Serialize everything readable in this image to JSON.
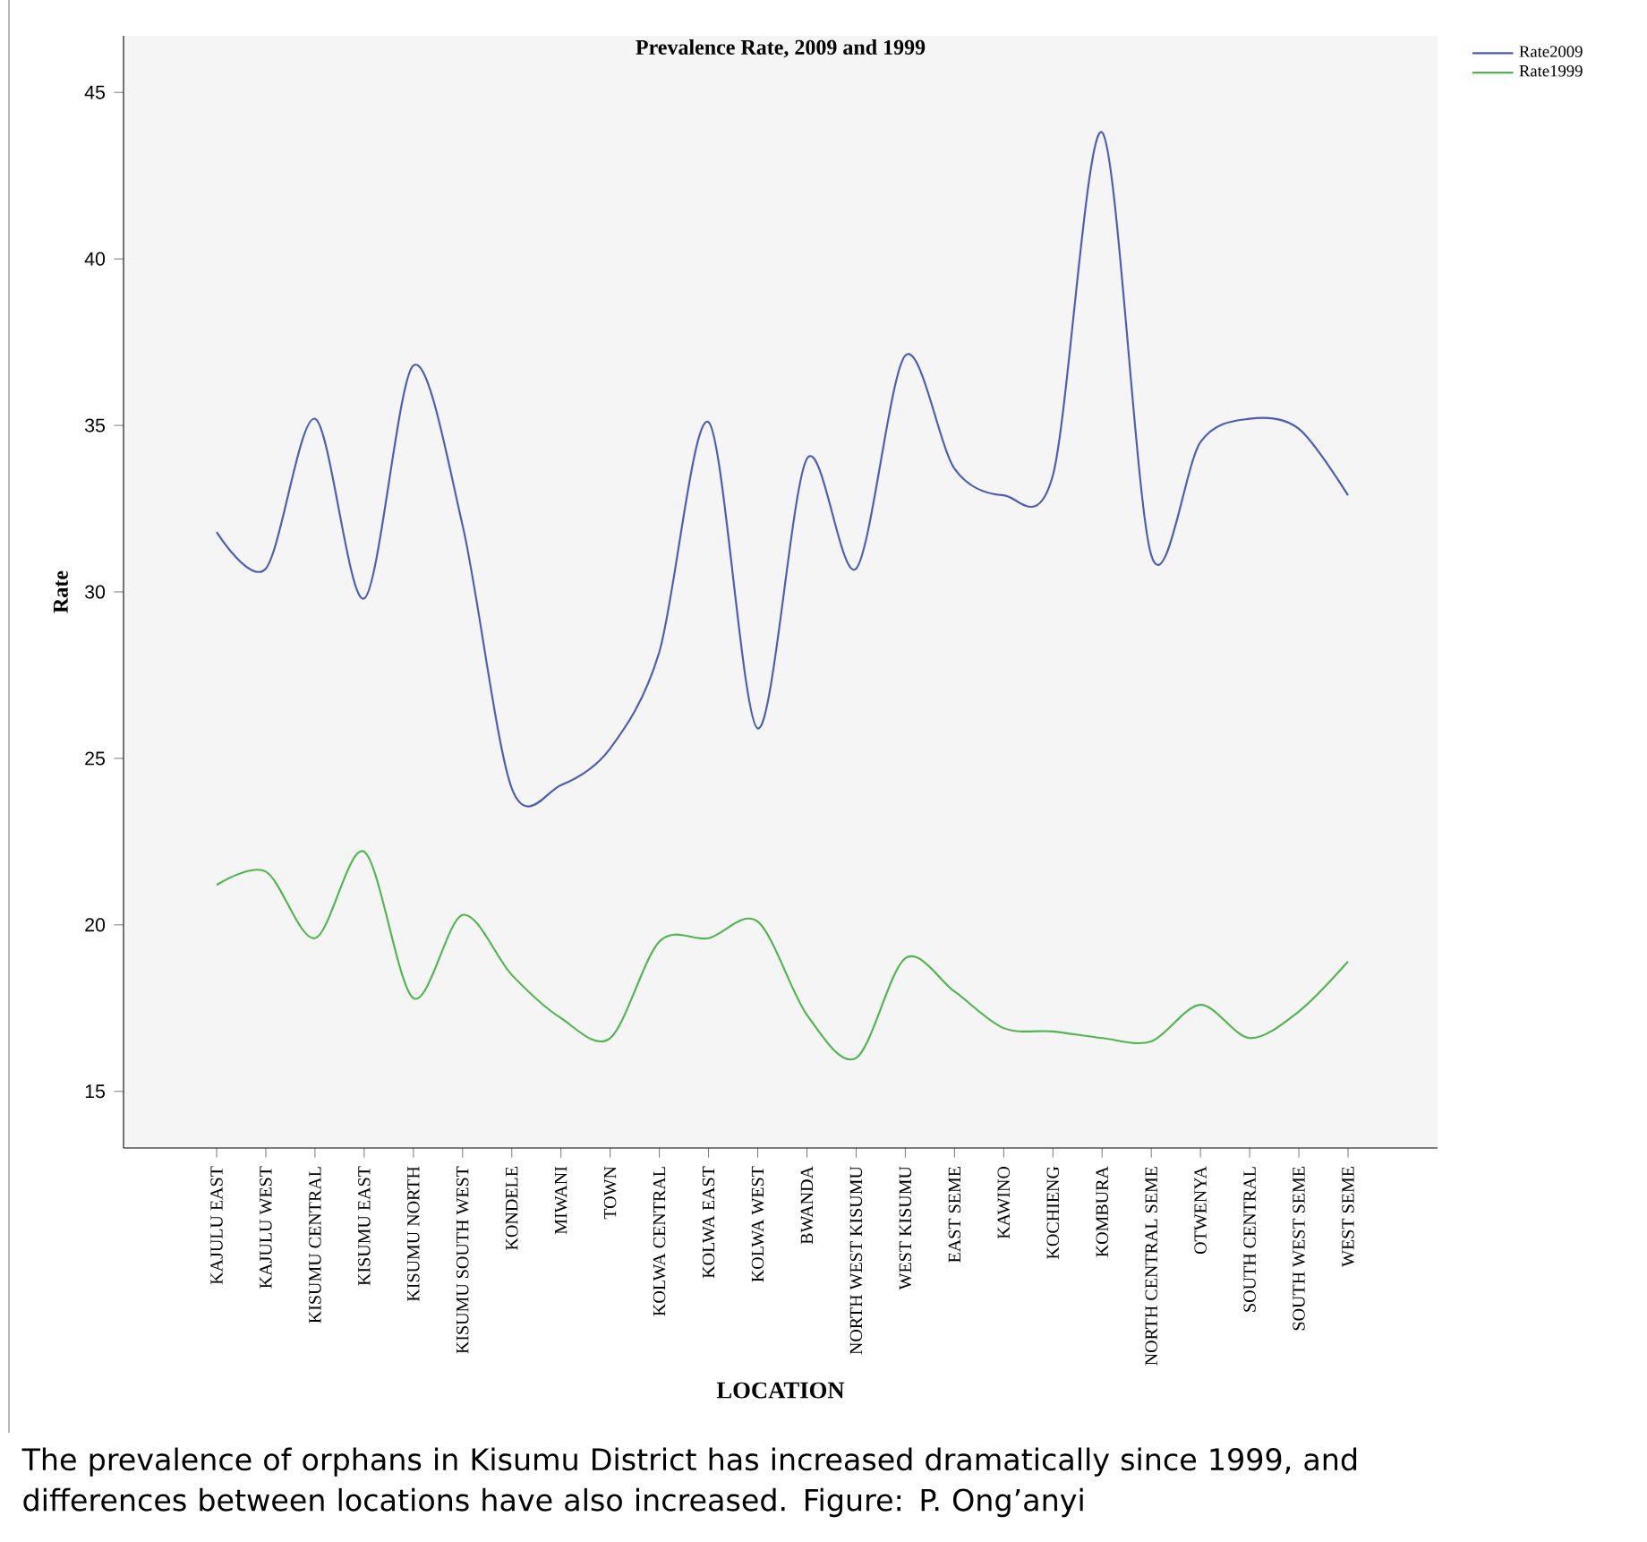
{
  "chart_data": {
    "type": "line",
    "title": "Prevalence Rate, 2009 and 1999",
    "xlabel": "LOCATION",
    "ylabel": "Rate",
    "categories": [
      "KAJULU EAST",
      "KAJULU WEST",
      "KISUMU CENTRAL",
      "KISUMU EAST",
      "KISUMU NORTH",
      "KISUMU SOUTH WEST",
      "KONDELE",
      "MIWANI",
      "TOWN",
      "KOLWA CENTRAL",
      "KOLWA EAST",
      "KOLWA WEST",
      "BWANDA",
      "NORTH WEST KISUMU",
      "WEST KISUMU",
      "EAST SEME",
      "KAWINO",
      "KOCHIENG",
      "KOMBURA",
      "NORTH CENTRAL SEME",
      "OTWENYA",
      "SOUTH CENTRAL",
      "SOUTH WEST SEME",
      "WEST SEME"
    ],
    "series": [
      {
        "name": "Rate2009",
        "color": "#4a5cb5",
        "values": [
          31.8,
          30.7,
          35.2,
          29.8,
          36.8,
          32.0,
          24.1,
          24.2,
          25.3,
          28.2,
          35.1,
          25.9,
          34.0,
          30.7,
          37.1,
          33.7,
          32.9,
          33.5,
          43.8,
          31.1,
          34.5,
          35.2,
          34.9,
          32.9
        ]
      },
      {
        "name": "Rate1999",
        "color": "#4cb84c",
        "values": [
          21.2,
          21.6,
          19.6,
          22.2,
          17.8,
          20.3,
          18.5,
          17.2,
          16.6,
          19.5,
          19.6,
          20.1,
          17.3,
          16.0,
          19.0,
          18.0,
          16.9,
          16.8,
          16.6,
          16.5,
          17.6,
          16.6,
          17.4,
          18.9
        ]
      }
    ],
    "ylim": [
      13.3,
      46.7
    ],
    "yticks": [
      15,
      20,
      25,
      30,
      35,
      40,
      45
    ],
    "legend": "top right",
    "grid": false,
    "marker": "none",
    "line_style": "solid",
    "annotations": [
      "The prevalence of orphans in Kisumu District has increased dramatically since 1999, and differences between locations have also increased. Figure: P. Ong’anyi"
    ]
  }
}
